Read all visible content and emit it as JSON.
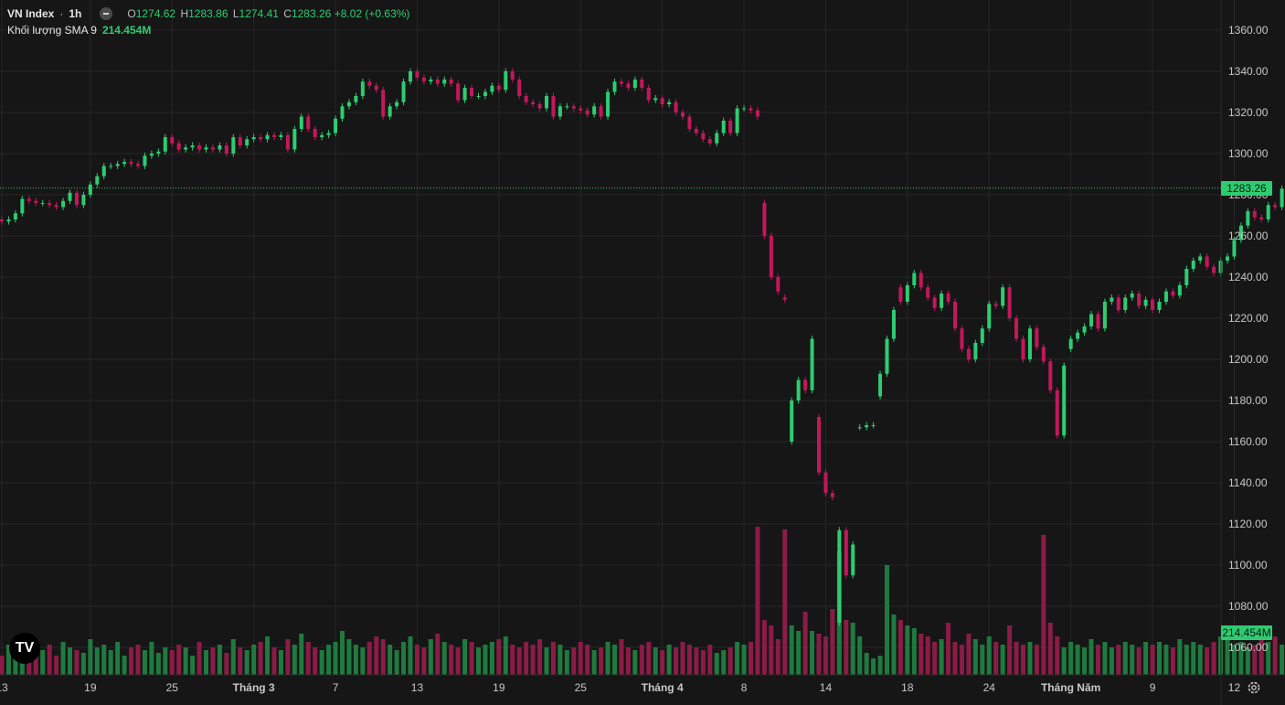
{
  "legend": {
    "symbol": "VN Index",
    "separator": "·",
    "interval": "1h",
    "o_label": "O",
    "o": "1274.62",
    "h_label": "H",
    "h": "1283.86",
    "l_label": "L",
    "l": "1274.41",
    "c_label": "C",
    "c": "1283.26",
    "change": "+8.02 (+0.63%)",
    "volume_label": "Khối lượng SMA 9",
    "volume_value": "214.454M"
  },
  "price_tag": "1283.26",
  "volume_tag": "214.454M",
  "logo_text": "TV",
  "colors": {
    "up": "#2ecc71",
    "down": "#c2185b",
    "bg": "#161616",
    "grid": "#262626",
    "text": "#d1d4dc"
  },
  "chart_data": {
    "type": "candlestick",
    "y_ticks": [
      "1360.00",
      "1340.00",
      "1320.00",
      "1300.00",
      "1280.00",
      "1260.00",
      "1240.00",
      "1220.00",
      "1200.00",
      "1180.00",
      "1160.00",
      "1140.00",
      "1120.00",
      "1100.00",
      "1080.00",
      "1060.00"
    ],
    "ylim": [
      1050,
      1370
    ],
    "x_ticks": [
      {
        "label": "13",
        "i": 0
      },
      {
        "label": "19",
        "i": 13
      },
      {
        "label": "25",
        "i": 25
      },
      {
        "label": "Tháng 3",
        "i": 37
      },
      {
        "label": "7",
        "i": 49
      },
      {
        "label": "13",
        "i": 61
      },
      {
        "label": "19",
        "i": 73
      },
      {
        "label": "25",
        "i": 85
      },
      {
        "label": "Tháng 4",
        "i": 97
      },
      {
        "label": "8",
        "i": 109
      },
      {
        "label": "14",
        "i": 121
      },
      {
        "label": "18",
        "i": 133
      },
      {
        "label": "24",
        "i": 145
      },
      {
        "label": "Tháng Năm",
        "i": 157
      },
      {
        "label": "9",
        "i": 169
      },
      {
        "label": "12",
        "i": 181
      }
    ],
    "last_price": 1283.26,
    "candles": [
      {
        "o": 1268,
        "c": 1267
      },
      {
        "o": 1267,
        "c": 1268
      },
      {
        "o": 1268,
        "c": 1271
      },
      {
        "o": 1271,
        "c": 1278
      },
      {
        "o": 1278,
        "c": 1277
      },
      {
        "o": 1277,
        "c": 1276
      },
      {
        "o": 1276,
        "c": 1276
      },
      {
        "o": 1276,
        "c": 1275
      },
      {
        "o": 1275,
        "c": 1274
      },
      {
        "o": 1274,
        "c": 1277
      },
      {
        "o": 1277,
        "c": 1281
      },
      {
        "o": 1281,
        "c": 1275
      },
      {
        "o": 1275,
        "c": 1280
      },
      {
        "o": 1280,
        "c": 1285
      },
      {
        "o": 1285,
        "c": 1289
      },
      {
        "o": 1289,
        "c": 1294
      },
      {
        "o": 1294,
        "c": 1294
      },
      {
        "o": 1294,
        "c": 1295
      },
      {
        "o": 1295,
        "c": 1296
      },
      {
        "o": 1296,
        "c": 1295
      },
      {
        "o": 1295,
        "c": 1294
      },
      {
        "o": 1294,
        "c": 1299
      },
      {
        "o": 1299,
        "c": 1300
      },
      {
        "o": 1300,
        "c": 1301
      },
      {
        "o": 1301,
        "c": 1308
      },
      {
        "o": 1308,
        "c": 1305
      },
      {
        "o": 1305,
        "c": 1302
      },
      {
        "o": 1302,
        "c": 1303
      },
      {
        "o": 1303,
        "c": 1304
      },
      {
        "o": 1304,
        "c": 1302
      },
      {
        "o": 1302,
        "c": 1303
      },
      {
        "o": 1303,
        "c": 1302
      },
      {
        "o": 1302,
        "c": 1304
      },
      {
        "o": 1304,
        "c": 1300
      },
      {
        "o": 1300,
        "c": 1308
      },
      {
        "o": 1308,
        "c": 1304
      },
      {
        "o": 1304,
        "c": 1307
      },
      {
        "o": 1307,
        "c": 1308
      },
      {
        "o": 1308,
        "c": 1307
      },
      {
        "o": 1307,
        "c": 1309
      },
      {
        "o": 1309,
        "c": 1308
      },
      {
        "o": 1308,
        "c": 1309
      },
      {
        "o": 1309,
        "c": 1302
      },
      {
        "o": 1302,
        "c": 1312
      },
      {
        "o": 1312,
        "c": 1318
      },
      {
        "o": 1318,
        "c": 1312
      },
      {
        "o": 1312,
        "c": 1308
      },
      {
        "o": 1308,
        "c": 1309
      },
      {
        "o": 1309,
        "c": 1310
      },
      {
        "o": 1310,
        "c": 1317
      },
      {
        "o": 1317,
        "c": 1323
      },
      {
        "o": 1323,
        "c": 1325
      },
      {
        "o": 1325,
        "c": 1328
      },
      {
        "o": 1328,
        "c": 1335
      },
      {
        "o": 1335,
        "c": 1333
      },
      {
        "o": 1333,
        "c": 1331
      },
      {
        "o": 1331,
        "c": 1318
      },
      {
        "o": 1318,
        "c": 1323
      },
      {
        "o": 1323,
        "c": 1325
      },
      {
        "o": 1325,
        "c": 1335
      },
      {
        "o": 1335,
        "c": 1340
      },
      {
        "o": 1340,
        "c": 1337
      },
      {
        "o": 1337,
        "c": 1335
      },
      {
        "o": 1335,
        "c": 1336
      },
      {
        "o": 1336,
        "c": 1334
      },
      {
        "o": 1334,
        "c": 1336
      },
      {
        "o": 1336,
        "c": 1334
      },
      {
        "o": 1334,
        "c": 1326
      },
      {
        "o": 1326,
        "c": 1332
      },
      {
        "o": 1332,
        "c": 1328
      },
      {
        "o": 1328,
        "c": 1328
      },
      {
        "o": 1328,
        "c": 1330
      },
      {
        "o": 1330,
        "c": 1333
      },
      {
        "o": 1333,
        "c": 1331
      },
      {
        "o": 1331,
        "c": 1340
      },
      {
        "o": 1340,
        "c": 1336
      },
      {
        "o": 1336,
        "c": 1328
      },
      {
        "o": 1328,
        "c": 1325
      },
      {
        "o": 1325,
        "c": 1324
      },
      {
        "o": 1324,
        "c": 1322
      },
      {
        "o": 1322,
        "c": 1328
      },
      {
        "o": 1328,
        "c": 1318
      },
      {
        "o": 1318,
        "c": 1323
      },
      {
        "o": 1323,
        "c": 1323
      },
      {
        "o": 1323,
        "c": 1322
      },
      {
        "o": 1322,
        "c": 1321
      },
      {
        "o": 1321,
        "c": 1319
      },
      {
        "o": 1319,
        "c": 1323
      },
      {
        "o": 1323,
        "c": 1318
      },
      {
        "o": 1318,
        "c": 1330
      },
      {
        "o": 1330,
        "c": 1335
      },
      {
        "o": 1335,
        "c": 1334
      },
      {
        "o": 1334,
        "c": 1332
      },
      {
        "o": 1332,
        "c": 1336
      },
      {
        "o": 1336,
        "c": 1332
      },
      {
        "o": 1332,
        "c": 1326
      },
      {
        "o": 1326,
        "c": 1327
      },
      {
        "o": 1327,
        "c": 1324
      },
      {
        "o": 1324,
        "c": 1325
      },
      {
        "o": 1325,
        "c": 1320
      },
      {
        "o": 1320,
        "c": 1318
      },
      {
        "o": 1318,
        "c": 1312
      },
      {
        "o": 1312,
        "c": 1310
      },
      {
        "o": 1310,
        "c": 1307
      },
      {
        "o": 1307,
        "c": 1305
      },
      {
        "o": 1305,
        "c": 1310
      },
      {
        "o": 1310,
        "c": 1316
      },
      {
        "o": 1316,
        "c": 1310
      },
      {
        "o": 1310,
        "c": 1322
      },
      {
        "o": 1322,
        "c": 1322
      },
      {
        "o": 1322,
        "c": 1321
      },
      {
        "o": 1321,
        "c": 1318
      },
      {
        "o": 1276,
        "c": 1260
      },
      {
        "o": 1260,
        "c": 1240
      },
      {
        "o": 1240,
        "c": 1233
      },
      {
        "o": 1230,
        "c": 1229
      },
      {
        "o": 1160,
        "c": 1180
      },
      {
        "o": 1180,
        "c": 1190
      },
      {
        "o": 1190,
        "c": 1185
      },
      {
        "o": 1185,
        "c": 1210
      },
      {
        "o": 1172,
        "c": 1145
      },
      {
        "o": 1145,
        "c": 1135
      },
      {
        "o": 1135,
        "c": 1133
      },
      {
        "o": 1072,
        "c": 1117
      },
      {
        "o": 1117,
        "c": 1095
      },
      {
        "o": 1095,
        "c": 1110
      },
      {
        "o": 1167,
        "c": 1167
      },
      {
        "o": 1167,
        "c": 1168
      },
      {
        "o": 1168,
        "c": 1168
      },
      {
        "o": 1182,
        "c": 1193
      },
      {
        "o": 1193,
        "c": 1210
      },
      {
        "o": 1210,
        "c": 1224
      },
      {
        "o": 1235,
        "c": 1228
      },
      {
        "o": 1228,
        "c": 1236
      },
      {
        "o": 1236,
        "c": 1242
      },
      {
        "o": 1242,
        "c": 1235
      },
      {
        "o": 1235,
        "c": 1230
      },
      {
        "o": 1230,
        "c": 1225
      },
      {
        "o": 1225,
        "c": 1232
      },
      {
        "o": 1232,
        "c": 1228
      },
      {
        "o": 1228,
        "c": 1215
      },
      {
        "o": 1215,
        "c": 1205
      },
      {
        "o": 1205,
        "c": 1200
      },
      {
        "o": 1200,
        "c": 1208
      },
      {
        "o": 1208,
        "c": 1215
      },
      {
        "o": 1215,
        "c": 1227
      },
      {
        "o": 1227,
        "c": 1226
      },
      {
        "o": 1226,
        "c": 1235
      },
      {
        "o": 1235,
        "c": 1220
      },
      {
        "o": 1220,
        "c": 1210
      },
      {
        "o": 1210,
        "c": 1200
      },
      {
        "o": 1200,
        "c": 1215
      },
      {
        "o": 1215,
        "c": 1206
      },
      {
        "o": 1206,
        "c": 1199
      },
      {
        "o": 1199,
        "c": 1185
      },
      {
        "o": 1185,
        "c": 1163
      },
      {
        "o": 1163,
        "c": 1197
      },
      {
        "o": 1205,
        "c": 1210
      },
      {
        "o": 1210,
        "c": 1213
      },
      {
        "o": 1213,
        "c": 1216
      },
      {
        "o": 1216,
        "c": 1222
      },
      {
        "o": 1222,
        "c": 1215
      },
      {
        "o": 1215,
        "c": 1228
      },
      {
        "o": 1228,
        "c": 1230
      },
      {
        "o": 1230,
        "c": 1224
      },
      {
        "o": 1224,
        "c": 1230
      },
      {
        "o": 1230,
        "c": 1232
      },
      {
        "o": 1232,
        "c": 1226
      },
      {
        "o": 1226,
        "c": 1229
      },
      {
        "o": 1229,
        "c": 1224
      },
      {
        "o": 1224,
        "c": 1228
      },
      {
        "o": 1228,
        "c": 1233
      },
      {
        "o": 1233,
        "c": 1231
      },
      {
        "o": 1231,
        "c": 1236
      },
      {
        "o": 1236,
        "c": 1244
      },
      {
        "o": 1244,
        "c": 1248
      },
      {
        "o": 1248,
        "c": 1250
      },
      {
        "o": 1250,
        "c": 1245
      },
      {
        "o": 1245,
        "c": 1242
      },
      {
        "o": 1242,
        "c": 1248
      },
      {
        "o": 1248,
        "c": 1250
      },
      {
        "o": 1250,
        "c": 1258
      },
      {
        "o": 1258,
        "c": 1265
      },
      {
        "o": 1265,
        "c": 1272
      },
      {
        "o": 1272,
        "c": 1269
      },
      {
        "o": 1269,
        "c": 1268
      },
      {
        "o": 1268,
        "c": 1275
      },
      {
        "o": 1275,
        "c": 1274
      },
      {
        "o": 1274,
        "c": 1283
      }
    ],
    "volume": [
      0.35,
      0.55,
      0.45,
      0.6,
      0.4,
      0.5,
      0.45,
      0.55,
      0.35,
      0.6,
      0.5,
      0.45,
      0.4,
      0.65,
      0.5,
      0.55,
      0.45,
      0.6,
      0.35,
      0.5,
      0.55,
      0.45,
      0.6,
      0.4,
      0.5,
      0.45,
      0.55,
      0.5,
      0.35,
      0.6,
      0.45,
      0.5,
      0.55,
      0.4,
      0.65,
      0.5,
      0.45,
      0.55,
      0.6,
      0.7,
      0.5,
      0.45,
      0.65,
      0.55,
      0.75,
      0.6,
      0.5,
      0.45,
      0.55,
      0.6,
      0.8,
      0.65,
      0.55,
      0.5,
      0.6,
      0.7,
      0.65,
      0.55,
      0.45,
      0.6,
      0.7,
      0.55,
      0.5,
      0.65,
      0.75,
      0.6,
      0.55,
      0.5,
      0.65,
      0.6,
      0.5,
      0.55,
      0.6,
      0.65,
      0.7,
      0.55,
      0.5,
      0.6,
      0.55,
      0.65,
      0.5,
      0.6,
      0.55,
      0.45,
      0.5,
      0.6,
      0.55,
      0.45,
      0.5,
      0.6,
      0.55,
      0.65,
      0.5,
      0.45,
      0.55,
      0.6,
      0.5,
      0.45,
      0.55,
      0.5,
      0.6,
      0.55,
      0.5,
      0.45,
      0.55,
      0.4,
      0.45,
      0.5,
      0.6,
      0.55,
      0.6,
      2.7,
      1.0,
      0.9,
      0.65,
      2.65,
      0.9,
      0.8,
      1.15,
      0.8,
      0.75,
      0.7,
      1.2,
      2.25,
      1.0,
      0.95,
      0.7,
      0.4,
      0.3,
      0.35,
      2.0,
      1.1,
      1.0,
      0.9,
      0.85,
      0.75,
      0.7,
      0.6,
      0.65,
      0.95,
      0.6,
      0.55,
      0.75,
      0.65,
      0.55,
      0.7,
      0.6,
      0.55,
      0.9,
      0.6,
      0.55,
      0.6,
      0.55,
      2.55,
      0.95,
      0.7,
      0.5,
      0.6,
      0.55,
      0.5,
      0.65,
      0.55,
      0.6,
      0.5,
      0.55,
      0.6,
      0.55,
      0.5,
      0.6,
      0.55,
      0.6,
      0.55,
      0.5,
      0.65,
      0.55,
      0.6,
      0.55,
      0.5,
      0.6,
      0.7,
      0.65,
      0.55,
      0.6,
      0.5,
      0.55,
      0.65,
      0.6,
      0.7,
      0.55,
      0.65
    ]
  }
}
